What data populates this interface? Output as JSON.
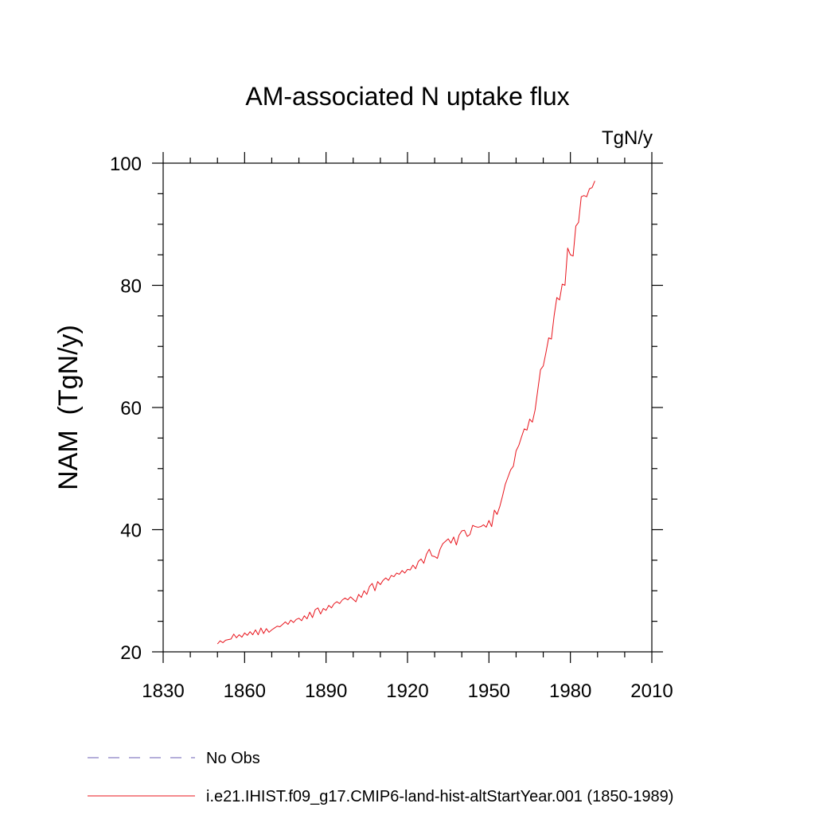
{
  "chart_data": {
    "type": "line",
    "title": "AM-associated N uptake flux",
    "units": "TgN/y",
    "ylabel": "NAM  (TgN/y)",
    "xlabel": "",
    "xlim": [
      1830,
      2010
    ],
    "ylim": [
      20,
      100
    ],
    "x_ticks": [
      1830,
      1860,
      1890,
      1920,
      1950,
      1980,
      2010
    ],
    "y_ticks": [
      20,
      40,
      60,
      80,
      100
    ],
    "legend": [
      {
        "label": "No Obs",
        "color": "#6b5fb5",
        "style": "dashed"
      },
      {
        "label": "i.e21.IHIST.f09_g17.CMIP6-land-hist-altStartYear.001 (1850-1989)",
        "color": "#e8141c",
        "style": "solid"
      }
    ],
    "series": [
      {
        "name": "i.e21.IHIST.f09_g17.CMIP6-land-hist-altStartYear.001 (1850-1989)",
        "color": "#e8141c",
        "x": [
          1850,
          1851,
          1852,
          1853,
          1854,
          1855,
          1856,
          1857,
          1858,
          1859,
          1860,
          1861,
          1862,
          1863,
          1864,
          1865,
          1866,
          1867,
          1868,
          1869,
          1870,
          1871,
          1872,
          1873,
          1874,
          1875,
          1876,
          1877,
          1878,
          1879,
          1880,
          1881,
          1882,
          1883,
          1884,
          1885,
          1886,
          1887,
          1888,
          1889,
          1890,
          1891,
          1892,
          1893,
          1894,
          1895,
          1896,
          1897,
          1898,
          1899,
          1900,
          1901,
          1902,
          1903,
          1904,
          1905,
          1906,
          1907,
          1908,
          1909,
          1910,
          1911,
          1912,
          1913,
          1914,
          1915,
          1916,
          1917,
          1918,
          1919,
          1920,
          1921,
          1922,
          1923,
          1924,
          1925,
          1926,
          1927,
          1928,
          1929,
          1930,
          1931,
          1932,
          1933,
          1934,
          1935,
          1936,
          1937,
          1938,
          1939,
          1940,
          1941,
          1942,
          1943,
          1944,
          1945,
          1946,
          1947,
          1948,
          1949,
          1950,
          1951,
          1952,
          1953,
          1954,
          1955,
          1956,
          1957,
          1958,
          1959,
          1960,
          1961,
          1962,
          1963,
          1964,
          1965,
          1966,
          1967,
          1968,
          1969,
          1970,
          1971,
          1972,
          1973,
          1974,
          1975,
          1976,
          1977,
          1978,
          1979,
          1980,
          1981,
          1982,
          1983,
          1984,
          1985,
          1986,
          1987,
          1988,
          1989
        ],
        "values": [
          21.3,
          21.8,
          21.5,
          21.9,
          22.0,
          22.1,
          22.9,
          22.3,
          22.8,
          22.4,
          23.1,
          22.7,
          23.3,
          22.8,
          23.6,
          22.8,
          23.9,
          23.0,
          23.8,
          23.2,
          23.6,
          23.9,
          24.2,
          24.1,
          24.5,
          24.9,
          24.5,
          25.2,
          24.8,
          25.3,
          25.5,
          25.1,
          25.9,
          25.4,
          26.5,
          25.6,
          26.9,
          27.2,
          26.2,
          27.1,
          26.8,
          27.6,
          27.2,
          27.9,
          28.2,
          27.9,
          28.5,
          28.8,
          28.5,
          29.0,
          28.6,
          28.2,
          29.4,
          28.9,
          30.0,
          29.4,
          30.7,
          31.2,
          30.0,
          31.5,
          31.0,
          31.7,
          32.1,
          31.7,
          32.5,
          32.3,
          32.9,
          32.7,
          33.3,
          32.9,
          33.5,
          33.4,
          34.2,
          33.6,
          34.8,
          35.2,
          34.5,
          36.0,
          36.8,
          35.7,
          35.6,
          35.3,
          36.8,
          37.7,
          38.1,
          38.5,
          37.8,
          38.8,
          37.5,
          39.1,
          39.8,
          39.9,
          38.9,
          39.2,
          40.7,
          40.5,
          40.4,
          40.5,
          40.8,
          40.4,
          41.5,
          40.5,
          43.2,
          42.5,
          43.8,
          45.5,
          47.4,
          48.6,
          49.8,
          50.4,
          52.9,
          53.8,
          55.2,
          56.5,
          56.3,
          58.1,
          57.6,
          59.6,
          62.9,
          66.2,
          66.8,
          69.0,
          71.4,
          71.2,
          75.0,
          78.0,
          77.6,
          80.2,
          80.0,
          86.1,
          85.0,
          84.8,
          89.7,
          90.3,
          94.5,
          94.7,
          94.5,
          95.8,
          96.0,
          97.1
        ]
      }
    ]
  }
}
